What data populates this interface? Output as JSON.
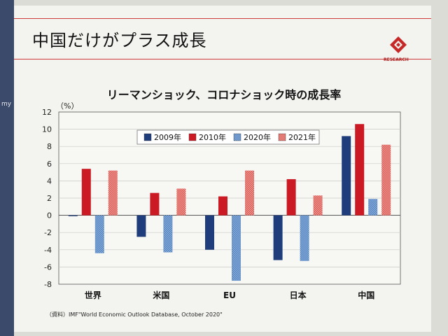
{
  "slide": {
    "title": "中国だけがプラス成長",
    "logo_text": "RESEARCH",
    "left_edge_text": "my"
  },
  "colors": {
    "accent_line": "#cf3a3a",
    "series_2009": "#1f3d7a",
    "series_2010": "#cc1a24",
    "series_2020": "#6f9bd0",
    "series_2021": "#e0706a"
  },
  "chart_data": {
    "type": "bar",
    "title": "リーマンショック、コロナショック時の成長率",
    "unit_label": "（%）",
    "categories": [
      "世界",
      "米国",
      "EU",
      "日本",
      "中国"
    ],
    "series": [
      {
        "name": "2009年",
        "values": [
          -0.1,
          -2.5,
          -4.0,
          -5.2,
          9.2
        ]
      },
      {
        "name": "2010年",
        "values": [
          5.4,
          2.6,
          2.2,
          4.2,
          10.6
        ]
      },
      {
        "name": "2020年",
        "values": [
          -4.4,
          -4.3,
          -7.6,
          -5.3,
          1.9
        ]
      },
      {
        "name": "2021年",
        "values": [
          5.2,
          3.1,
          5.2,
          2.3,
          8.2
        ]
      }
    ],
    "ylim": [
      -8,
      12
    ],
    "yticks": [
      12,
      10,
      8,
      6,
      4,
      2,
      0,
      -2,
      -4,
      -6,
      -8
    ],
    "grid": true,
    "legend_position": "top-center"
  },
  "source": "（資料）IMF\"World Economic Outlook Database, October 2020\""
}
